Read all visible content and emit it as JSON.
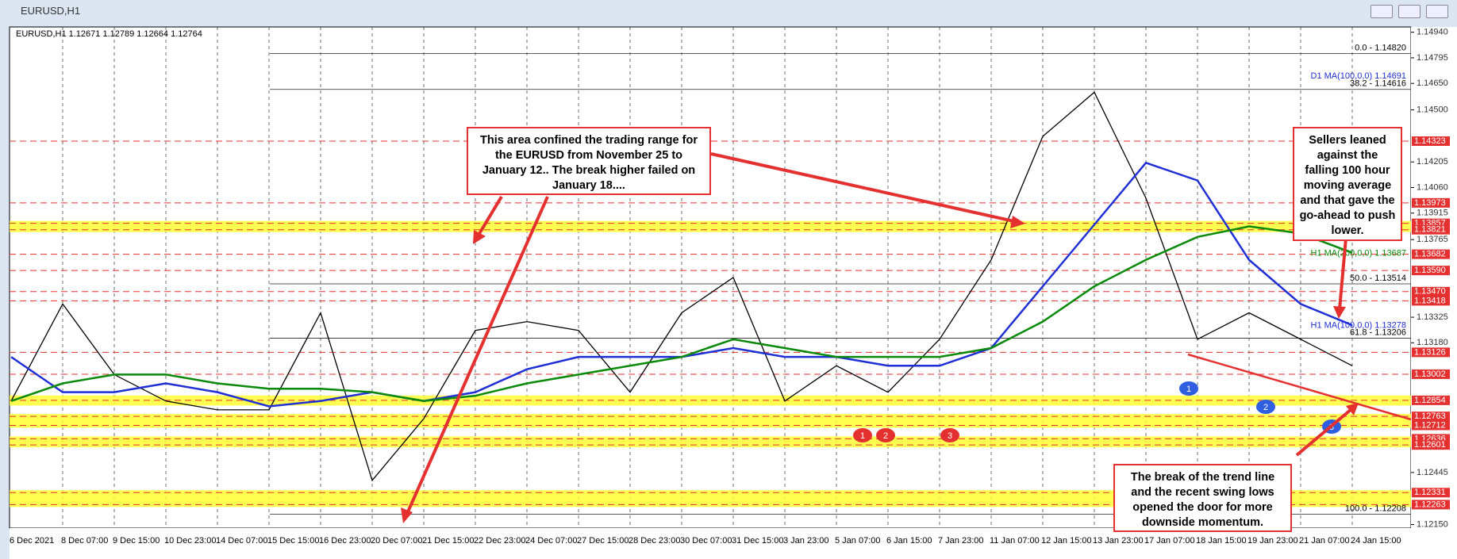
{
  "window_title": "EURUSD,H1",
  "chart_data": {
    "type": "line",
    "header": "EURUSD,H1  1.12671 1.12789 1.12664 1.12764",
    "categories": [
      "6 Dec 2021",
      "8 Dec 07:00",
      "9 Dec 15:00",
      "10 Dec 23:00",
      "14 Dec 07:00",
      "15 Dec 15:00",
      "16 Dec 23:00",
      "20 Dec 07:00",
      "21 Dec 15:00",
      "22 Dec 23:00",
      "24 Dec 07:00",
      "27 Dec 15:00",
      "28 Dec 23:00",
      "30 Dec 07:00",
      "31 Dec 15:00",
      "3 Jan 23:00",
      "5 Jan 07:00",
      "6 Jan 15:00",
      "7 Jan 23:00",
      "11 Jan 07:00",
      "12 Jan 15:00",
      "13 Jan 23:00",
      "17 Jan 07:00",
      "18 Jan 15:00",
      "19 Jan 23:00",
      "21 Jan 07:00",
      "24 Jan 15:00"
    ],
    "series": [
      {
        "color": "#000000",
        "values": [
          1.1285,
          1.134,
          1.13,
          1.1285,
          1.128,
          1.128,
          1.1335,
          1.124,
          1.1275,
          1.1325,
          1.133,
          1.1325,
          1.129,
          1.1335,
          1.1355,
          1.1285,
          1.1305,
          1.129,
          1.132,
          1.1365,
          1.1435,
          1.146,
          1.14,
          1.132,
          1.1335,
          1.132,
          1.1305
        ]
      },
      {
        "color": "#1f2fd6",
        "values": [
          1.131,
          1.129,
          1.129,
          1.1295,
          1.129,
          1.1282,
          1.1285,
          1.129,
          1.1285,
          1.129,
          1.1303,
          1.131,
          1.131,
          1.131,
          1.1315,
          1.131,
          1.131,
          1.1305,
          1.1305,
          1.1315,
          1.135,
          1.1385,
          1.142,
          1.141,
          1.1365,
          1.134,
          1.1328
        ]
      },
      {
        "color": "#0a8a0a",
        "values": [
          1.1285,
          1.1295,
          1.13,
          1.13,
          1.1295,
          1.1292,
          1.1292,
          1.129,
          1.1285,
          1.1288,
          1.1295,
          1.13,
          1.1305,
          1.131,
          1.132,
          1.1315,
          1.131,
          1.131,
          1.131,
          1.1315,
          1.133,
          1.135,
          1.1365,
          1.1378,
          1.1384,
          1.138,
          1.1369
        ]
      }
    ],
    "ylim": [
      1.1213,
      1.1497
    ],
    "yticks": [
      {
        "value": 1.1494,
        "label": "1.14940"
      },
      1.14795,
      {
        "value": 1.1465,
        "label": "1.14650"
      },
      {
        "value": 1.145,
        "label": "1.14500"
      },
      1.14205,
      {
        "value": 1.1406,
        "label": "1.14060"
      },
      1.13915,
      1.13765,
      1.13325,
      {
        "value": 1.1318,
        "label": "1.13180"
      },
      1.12445,
      {
        "value": 1.1215,
        "label": "1.12150"
      }
    ],
    "grid": true,
    "levels": [
      1.14323,
      1.13973,
      1.13857,
      1.13821,
      1.13682,
      {
        "value": 1.1359,
        "label": "1.13590"
      },
      {
        "value": 1.1347,
        "label": "1.13470"
      },
      1.13418,
      1.13126,
      1.13002,
      1.12854,
      1.12763,
      1.12712,
      1.12636,
      1.12601,
      1.12331,
      1.12263
    ],
    "zones": [
      [
        1.13821,
        1.13857
      ],
      [
        1.12838,
        1.12868
      ],
      [
        1.12712,
        1.12763
      ],
      [
        1.12601,
        1.12636
      ],
      [
        1.12263,
        1.12331
      ]
    ],
    "fib_levels": [
      {
        "value": 1.1482,
        "label": "0.0 - 1.14820"
      },
      {
        "value": 1.14616,
        "label": "38.2 - 1.14616"
      },
      {
        "value": 1.13514,
        "label": "50.0 - 1.13514"
      },
      {
        "value": 1.13206,
        "label": "61.8 - 1.13206"
      },
      {
        "value": 1.12208,
        "label": "100.0 - 1.12208"
      }
    ],
    "ma_labels": [
      {
        "value": 1.14691,
        "label": "D1 MA(100,0,0) 1.14691"
      },
      {
        "value": 1.13687,
        "label": "H1 MA(200,0,0) 1.13687"
      },
      {
        "value": 1.13278,
        "label": "H1 MA(100,0,0) 1.13278"
      }
    ],
    "annotations": [
      "This area confined the trading range for the EURUSD from November 25  to January 12.. The break higher failed on January 18....",
      "Sellers leaned against the falling 100 hour moving average and that gave the go-ahead to push lower.",
      "The break of the trend line and the recent swing lows opened the door for more downside momentum."
    ],
    "swing_markers": [
      "1",
      "2",
      "3",
      "1",
      "2",
      "3"
    ]
  }
}
